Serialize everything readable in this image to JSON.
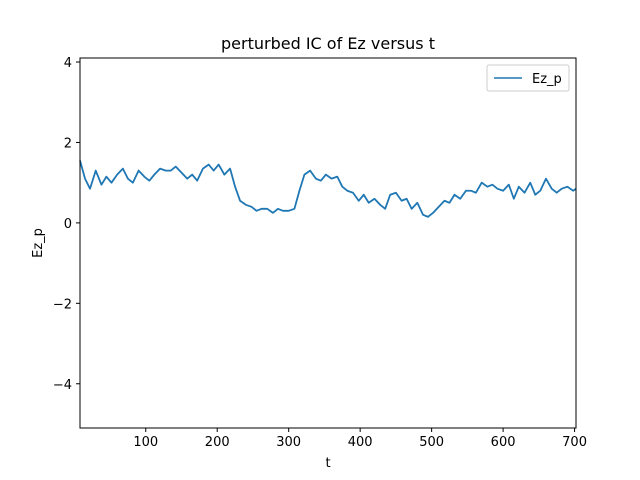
{
  "chart_data": {
    "type": "line",
    "title": "perturbed IC of Ez versus t",
    "xlabel": "t",
    "ylabel": "Ez_p",
    "xlim": [
      8,
      702
    ],
    "ylim": [
      -5.1,
      4.1
    ],
    "xticks": [
      100,
      200,
      300,
      400,
      500,
      600,
      700
    ],
    "xtick_labels": [
      "100",
      "200",
      "300",
      "400",
      "500",
      "600",
      "700"
    ],
    "yticks": [
      -4,
      -2,
      0,
      2,
      4
    ],
    "ytick_labels": [
      "−4",
      "−2",
      "0",
      "2",
      "4"
    ],
    "grid": false,
    "legend": {
      "position": "top-right",
      "entries": [
        "Ez_p"
      ]
    },
    "series": [
      {
        "name": "Ez_p",
        "color": "#1f77b4",
        "x": [
          8,
          15,
          22,
          30,
          38,
          45,
          52,
          60,
          68,
          75,
          82,
          90,
          98,
          105,
          112,
          120,
          128,
          135,
          142,
          150,
          158,
          165,
          172,
          180,
          188,
          195,
          202,
          210,
          218,
          225,
          232,
          240,
          248,
          255,
          262,
          270,
          278,
          285,
          292,
          300,
          308,
          315,
          322,
          330,
          338,
          345,
          352,
          360,
          368,
          375,
          382,
          390,
          398,
          405,
          412,
          420,
          428,
          435,
          442,
          450,
          458,
          465,
          472,
          480,
          488,
          495,
          502,
          510,
          518,
          525,
          532,
          540,
          548,
          555,
          562,
          570,
          578,
          585,
          592,
          600,
          608,
          615,
          622,
          630,
          638,
          645,
          652,
          660,
          668,
          675,
          682,
          690,
          698,
          702
        ],
        "y": [
          1.55,
          1.1,
          0.85,
          1.3,
          0.95,
          1.15,
          1.0,
          1.2,
          1.35,
          1.1,
          1.0,
          1.3,
          1.15,
          1.05,
          1.2,
          1.35,
          1.3,
          1.3,
          1.4,
          1.25,
          1.1,
          1.2,
          1.05,
          1.35,
          1.45,
          1.3,
          1.45,
          1.2,
          1.35,
          0.9,
          0.55,
          0.45,
          0.4,
          0.3,
          0.35,
          0.35,
          0.25,
          0.35,
          0.3,
          0.3,
          0.35,
          0.8,
          1.2,
          1.3,
          1.1,
          1.05,
          1.2,
          1.1,
          1.15,
          0.9,
          0.8,
          0.75,
          0.55,
          0.7,
          0.5,
          0.6,
          0.45,
          0.35,
          0.7,
          0.75,
          0.55,
          0.6,
          0.35,
          0.5,
          0.2,
          0.15,
          0.25,
          0.4,
          0.55,
          0.5,
          0.7,
          0.6,
          0.8,
          0.8,
          0.75,
          1.0,
          0.9,
          0.95,
          0.85,
          0.8,
          0.95,
          0.6,
          0.9,
          0.75,
          1.0,
          0.7,
          0.8,
          1.1,
          0.85,
          0.75,
          0.85,
          0.9,
          0.8,
          0.85
        ]
      }
    ]
  }
}
